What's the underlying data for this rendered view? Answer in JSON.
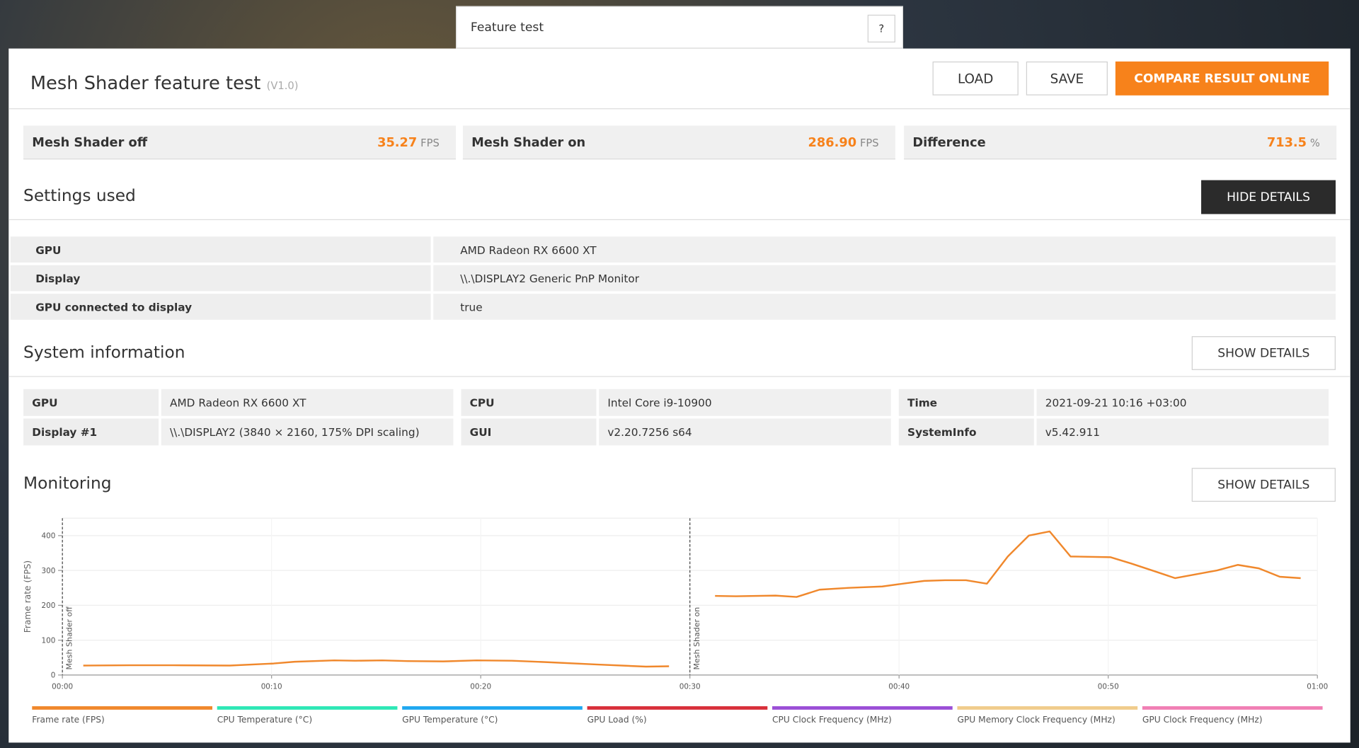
{
  "tab": {
    "title": "Feature test",
    "help": "?"
  },
  "header": {
    "title": "Mesh Shader feature test",
    "version": "(V1.0)",
    "buttons": [
      "LOAD",
      "SAVE",
      "COMPARE RESULT ONLINE"
    ]
  },
  "results": [
    {
      "label": "Mesh Shader off",
      "value": "35.27",
      "unit": "FPS"
    },
    {
      "label": "Mesh Shader on",
      "value": "286.90",
      "unit": "FPS"
    },
    {
      "label": "Difference",
      "value": "713.5",
      "unit": "%"
    }
  ],
  "settings": {
    "title": "Settings used",
    "button": "HIDE DETAILS",
    "rows": [
      [
        "GPU",
        "AMD Radeon RX 6600 XT"
      ],
      [
        "Display",
        "\\\\.\\DISPLAY2 Generic PnP Monitor"
      ],
      [
        "GPU connected to display",
        "true"
      ]
    ]
  },
  "system_information": {
    "title": "System information",
    "button": "SHOW DETAILS",
    "columns": [
      [
        [
          "GPU",
          "AMD Radeon RX 6600 XT"
        ],
        [
          "Display #1",
          "\\\\.\\DISPLAY2 (3840 × 2160, 175% DPI scaling)"
        ]
      ],
      [
        [
          "CPU",
          "Intel Core i9-10900"
        ],
        [
          "GUI",
          "v2.20.7256 s64"
        ]
      ],
      [
        [
          "Time",
          "2021-09-21 10:16 +03:00"
        ],
        [
          "SystemInfo",
          "v5.42.911"
        ]
      ]
    ]
  },
  "monitoring": {
    "title": "Monitoring",
    "button": "SHOW DETAILS"
  },
  "chart_data": {
    "type": "line",
    "y_label": "Frame rate (FPS)",
    "x": [
      1.0,
      3.2,
      5.3,
      8.0,
      10.1,
      11.1,
      13.0,
      14.0,
      15.3,
      16.5,
      18.2,
      19.8,
      21.5,
      23.1,
      25.6,
      27.9,
      29.0,
      30,
      31.2,
      32.2,
      34.1,
      35.1,
      36.2,
      37.6,
      39.2,
      40.3,
      41.2,
      42.2,
      43.2,
      44.2,
      45.2,
      46.2,
      47.2,
      48.2,
      50.1,
      51.1,
      52.1,
      53.2,
      55.2,
      56.2,
      57.2,
      58.2,
      59.2
    ],
    "series": [
      {
        "name": "Frame rate (FPS)",
        "color": "#f0882c",
        "values": [
          27,
          28,
          28,
          27,
          33,
          38,
          42,
          41,
          42,
          40,
          39,
          42,
          41,
          37,
          30,
          24,
          25,
          null,
          227,
          226,
          228,
          224,
          245,
          250,
          254,
          263,
          270,
          272,
          272,
          262,
          340,
          400,
          412,
          340,
          338,
          320,
          300,
          278,
          300,
          316,
          306,
          282,
          278
        ]
      }
    ],
    "legend_items": [
      {
        "name": "Frame rate (FPS)",
        "color": "#f0882c"
      },
      {
        "name": "CPU Temperature (°C)",
        "color": "#2ee8b6"
      },
      {
        "name": "GPU Temperature (°C)",
        "color": "#20a8f0"
      },
      {
        "name": "GPU Load (%)",
        "color": "#d8303a"
      },
      {
        "name": "CPU Clock Frequency (MHz)",
        "color": "#9b4fd6"
      },
      {
        "name": "GPU Memory Clock Frequency (MHz)",
        "color": "#f0cc8c"
      },
      {
        "name": "GPU Clock Frequency (MHz)",
        "color": "#f07fb4"
      }
    ],
    "markers": [
      {
        "x": 0,
        "label": "Mesh Shader off"
      },
      {
        "x": 30,
        "label": "Mesh Shader on"
      }
    ],
    "xlim": [
      0,
      60
    ],
    "xticks": [
      {
        "value": 0,
        "label": "00:00"
      },
      {
        "value": 10,
        "label": "00:10"
      },
      {
        "value": 20,
        "label": "00:20"
      },
      {
        "value": 30,
        "label": "00:30"
      },
      {
        "value": 40,
        "label": "00:40"
      },
      {
        "value": 50,
        "label": "00:50"
      },
      {
        "value": 60,
        "label": "01:00"
      }
    ],
    "ylim": [
      0,
      450
    ],
    "yticks": [
      0,
      100,
      200,
      300,
      400
    ],
    "grid": true
  }
}
